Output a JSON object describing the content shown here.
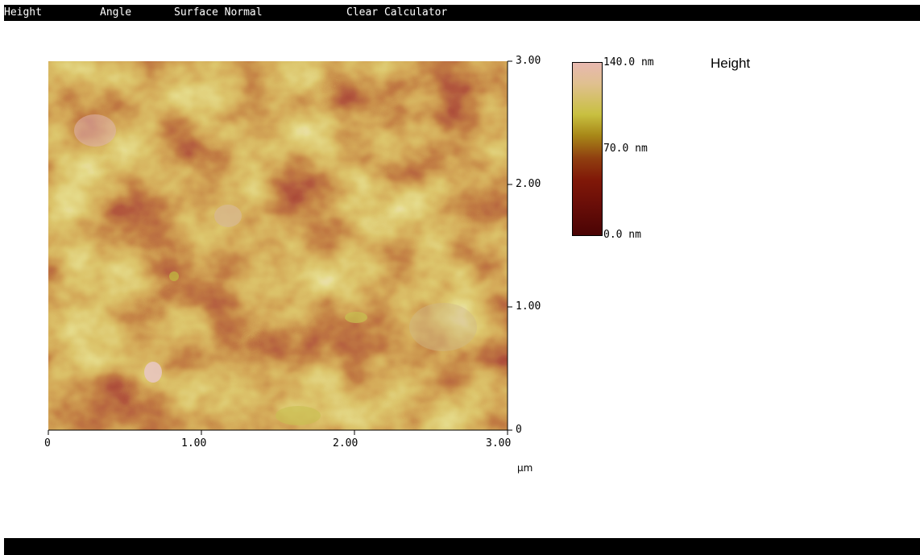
{
  "menu": {
    "items": [
      {
        "label": "Height"
      },
      {
        "label": "Angle"
      },
      {
        "label": "Surface Normal"
      },
      {
        "label": "Clear Calculator"
      }
    ]
  },
  "image": {
    "channel_title": "Height",
    "x_axis": {
      "ticks": [
        "0",
        "1.00",
        "2.00",
        "3.00"
      ],
      "unit": "µm"
    },
    "y_axis": {
      "ticks": [
        "3.00",
        "2.00",
        "1.00",
        "0"
      ]
    },
    "colorbar": {
      "max_label": "140.0 nm",
      "mid_label": "70.0 nm",
      "min_label": "0.0 nm",
      "colors": [
        "#e8b8b0",
        "#c8c040",
        "#904010",
        "#4a0404"
      ]
    }
  }
}
